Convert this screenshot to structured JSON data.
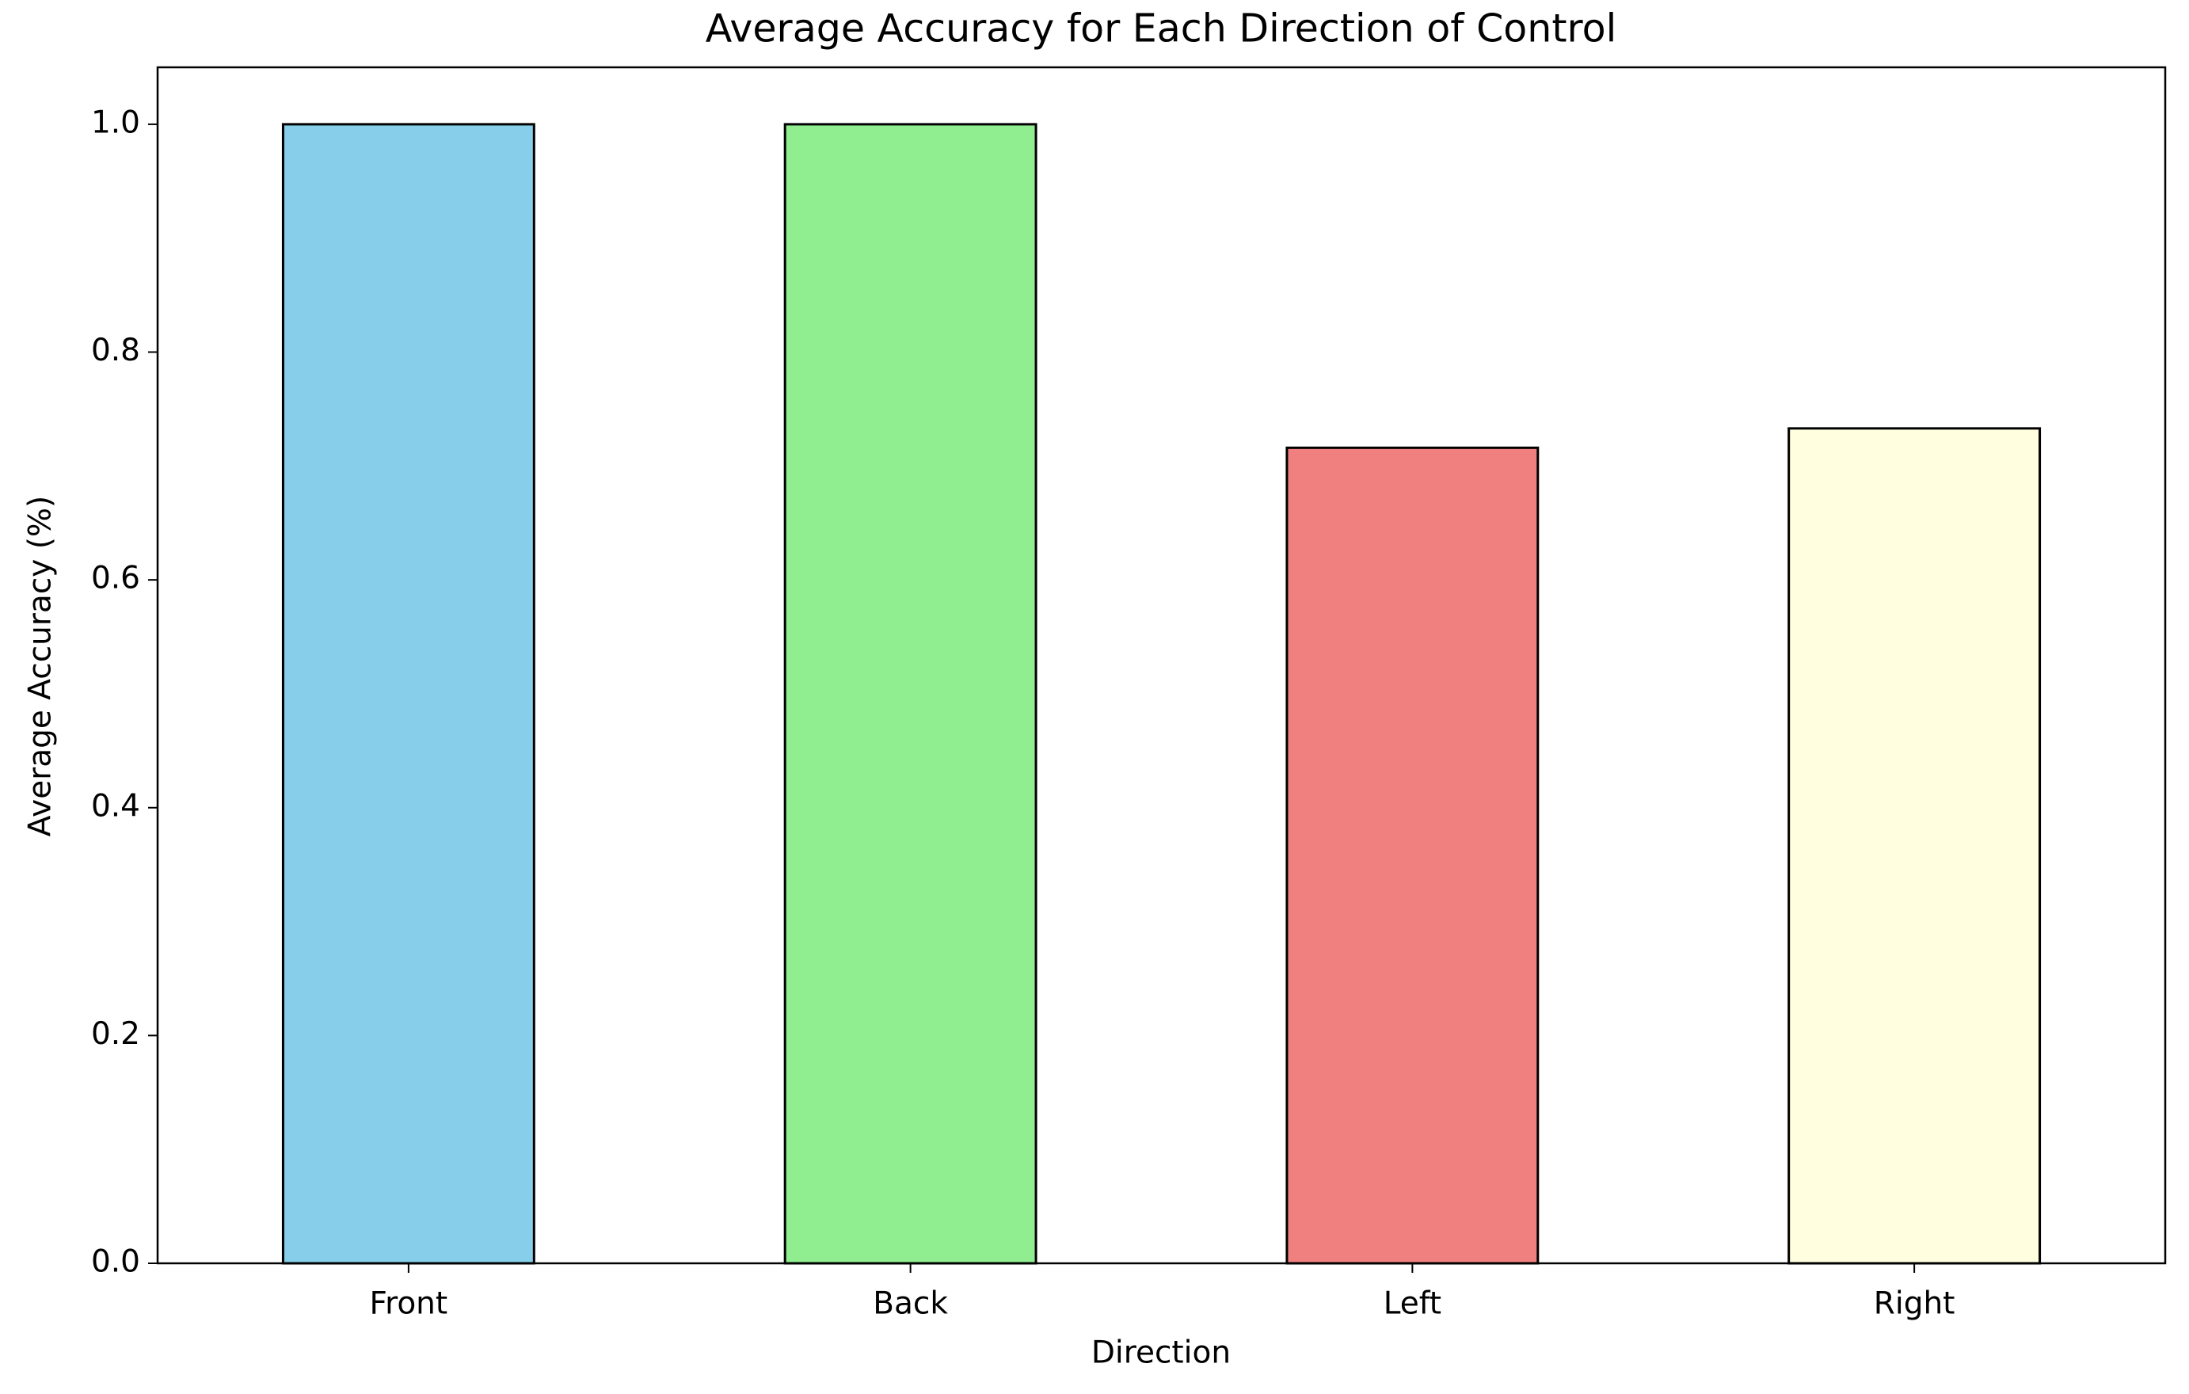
{
  "chart_data": {
    "type": "bar",
    "title": "Average Accuracy for Each Direction of Control",
    "x_label": "Direction",
    "y_label": "Average Accuracy (%)",
    "categories": [
      "Front",
      "Back",
      "Left",
      "Right"
    ],
    "values": [
      1.0,
      1.0,
      0.716,
      0.733
    ],
    "colors": [
      "#87ceeb",
      "#90ee90",
      "#f08080",
      "#ffffe0"
    ],
    "ylim": [
      0,
      1.05
    ],
    "yticks": [
      {
        "value": 0,
        "label": "0.0"
      },
      0.2,
      0.4,
      0.6,
      0.8,
      {
        "value": 1,
        "label": "1.0"
      }
    ]
  }
}
